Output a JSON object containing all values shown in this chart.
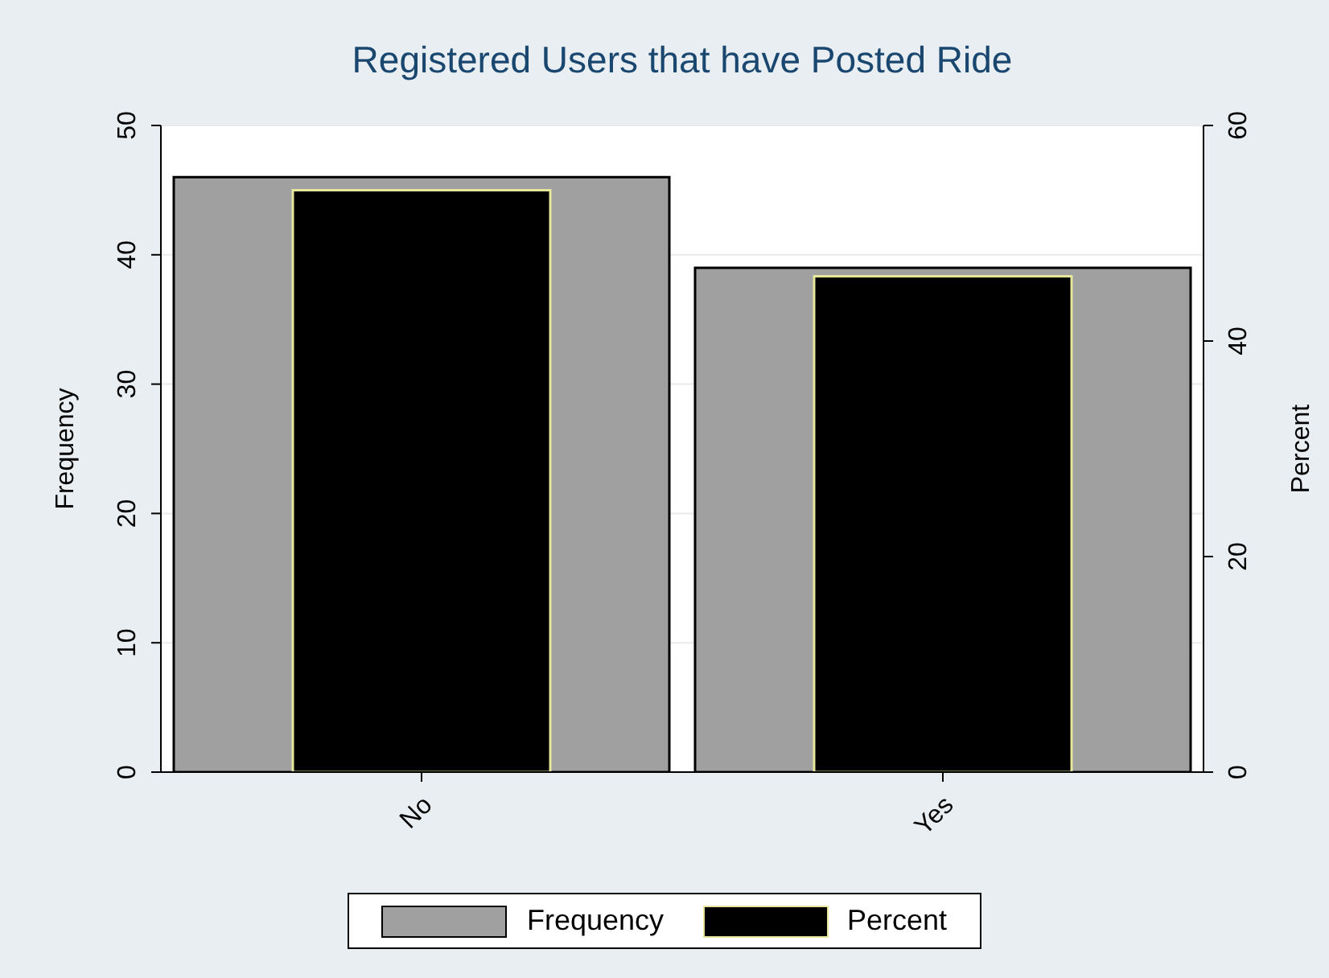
{
  "chart_data": {
    "type": "bar",
    "title": "Registered Users that have Posted Ride",
    "categories": [
      "No",
      "Yes"
    ],
    "ylabel": "Frequency",
    "y2label": "Percent",
    "series": [
      {
        "name": "Frequency",
        "color": "#a0a0a0",
        "values": [
          46,
          39
        ]
      },
      {
        "name": "Percent",
        "color": "#000000",
        "values": [
          54,
          46
        ],
        "axis": "y2"
      }
    ],
    "ylim": [
      0,
      50
    ],
    "yticks": [
      0,
      10,
      20,
      30,
      40,
      50
    ],
    "y2lim": [
      0,
      60
    ],
    "y2ticks": [
      0,
      20,
      40,
      60
    ],
    "grid": "y",
    "legend": "bottom"
  }
}
